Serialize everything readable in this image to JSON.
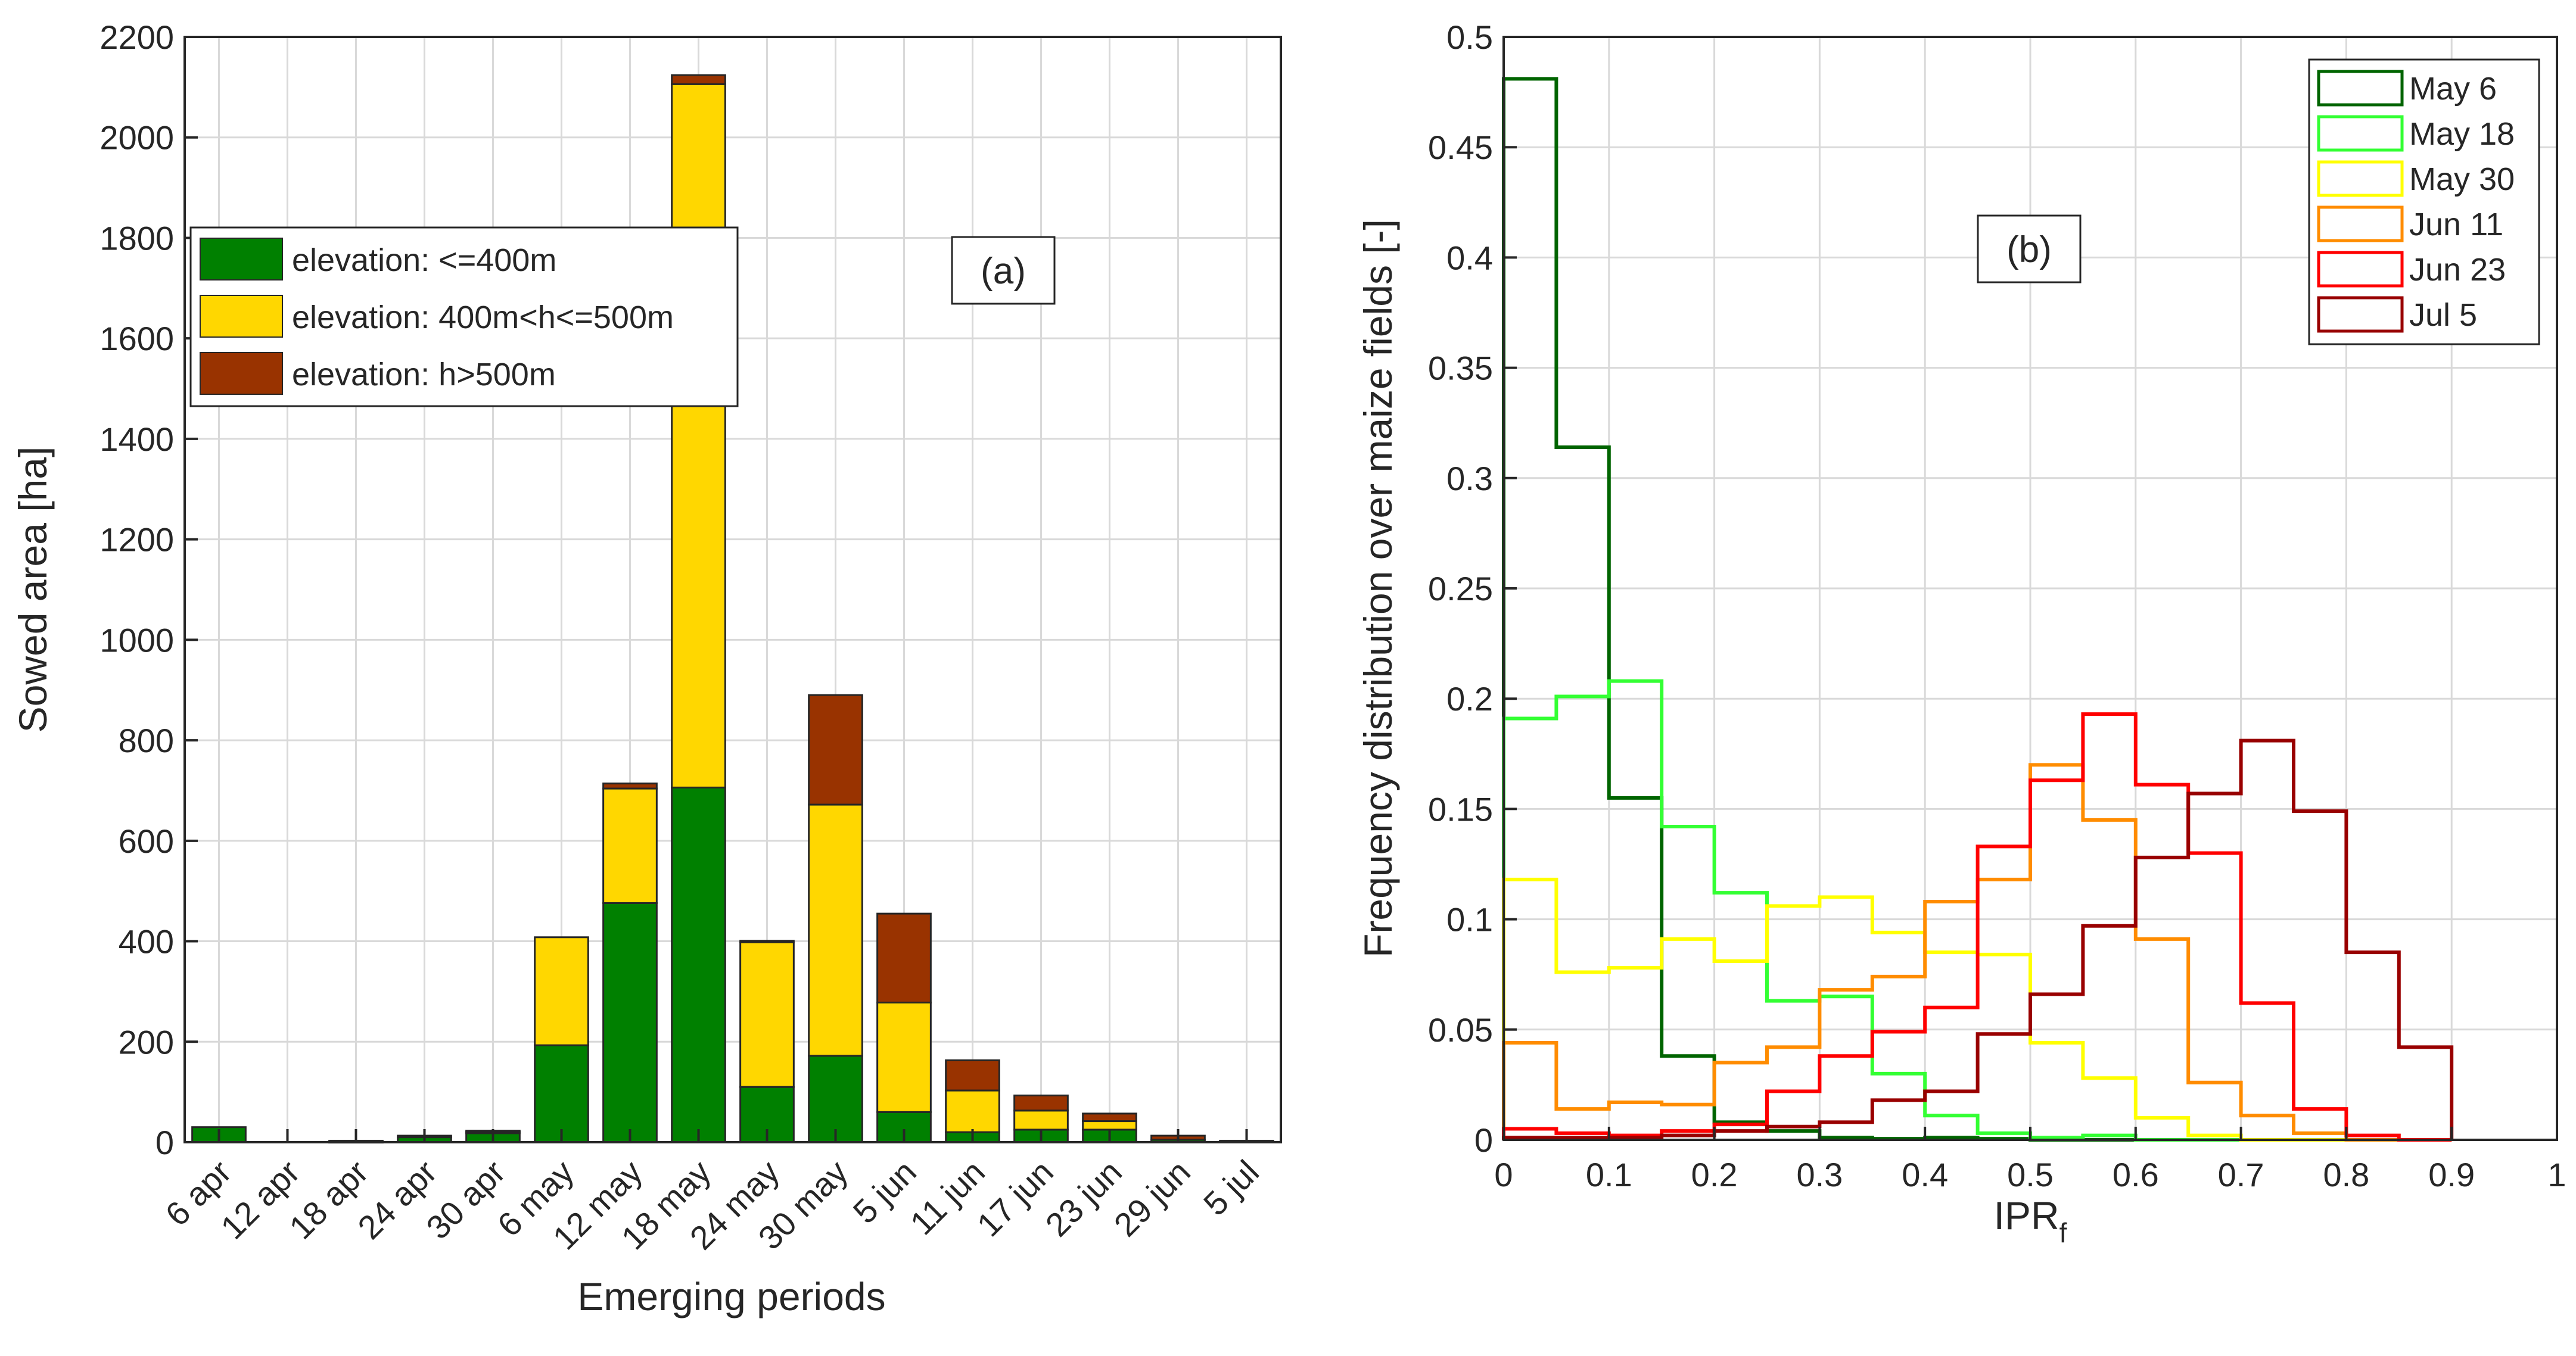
{
  "chart_data": [
    {
      "type": "bar",
      "stacked": true,
      "annotation": "(a)",
      "xlabel": "Emerging periods",
      "ylabel": "Sowed area [ha]",
      "ylim": [
        0,
        2200
      ],
      "yticks": [
        "0",
        "200",
        "400",
        "600",
        "800",
        "1000",
        "1200",
        "1400",
        "1600",
        "1800",
        "2000",
        "2200"
      ],
      "grid": true,
      "legend_position": "top-left",
      "categories": [
        "6 apr",
        "12 apr",
        "18 apr",
        "24 apr",
        "30 apr",
        "6 may",
        "12 may",
        "18 may",
        "24 may",
        "30 may",
        "5 jun",
        "11 jun",
        "17 jun",
        "23 jun",
        "29 jun",
        "5 jul"
      ],
      "series": [
        {
          "name": "elevation: <=400m",
          "color": "#008000",
          "values": [
            30,
            0,
            0,
            10,
            18,
            193,
            476,
            706,
            110,
            172,
            60,
            20,
            25,
            25,
            5,
            0
          ]
        },
        {
          "name": "elevation: 400m<h<=500m",
          "color": "#FFD700",
          "values": [
            0,
            0,
            1,
            3,
            3,
            215,
            228,
            1400,
            288,
            500,
            218,
            83,
            38,
            17,
            0,
            0
          ]
        },
        {
          "name": "elevation: h>500m",
          "color": "#993300",
          "values": [
            0,
            0,
            2,
            0,
            2,
            0,
            10,
            18,
            3,
            218,
            177,
            60,
            30,
            15,
            8,
            3
          ]
        }
      ]
    },
    {
      "type": "line",
      "step": true,
      "annotation": "(b)",
      "xlabel": "IPR",
      "xlabel_subscript": "f",
      "ylabel": "Frequency distribution over maize fields [-]",
      "xlim": [
        0,
        1
      ],
      "ylim": [
        0,
        0.5
      ],
      "xticks": [
        "0",
        "0.1",
        "0.2",
        "0.3",
        "0.4",
        "0.5",
        "0.6",
        "0.7",
        "0.8",
        "0.9",
        "1"
      ],
      "yticks": [
        "0",
        "0.05",
        "0.1",
        "0.15",
        "0.2",
        "0.25",
        "0.3",
        "0.35",
        "0.4",
        "0.45",
        "0.5"
      ],
      "grid": true,
      "legend_position": "top-right",
      "bin_edges": [
        0,
        0.05,
        0.1,
        0.15,
        0.2,
        0.25,
        0.3,
        0.35,
        0.4,
        0.45,
        0.5,
        0.55,
        0.6,
        0.65,
        0.7,
        0.75,
        0.8,
        0.85,
        0.9
      ],
      "series": [
        {
          "name": "May 6",
          "color": "#006400",
          "values": [
            0.481,
            0.314,
            0.155,
            0.038,
            0.008,
            0.004,
            0.001,
            0.0005,
            0.001,
            0.0005,
            0,
            0,
            0,
            0,
            0,
            0,
            0,
            0
          ]
        },
        {
          "name": "May 18",
          "color": "#33FF33",
          "values": [
            0.191,
            0.201,
            0.208,
            0.142,
            0.112,
            0.063,
            0.065,
            0.03,
            0.011,
            0.003,
            0.001,
            0.002,
            0,
            0,
            0,
            0,
            0,
            0
          ]
        },
        {
          "name": "May 30",
          "color": "#FFFF00",
          "values": [
            0.118,
            0.076,
            0.078,
            0.091,
            0.081,
            0.106,
            0.11,
            0.094,
            0.085,
            0.084,
            0.044,
            0.028,
            0.01,
            0.002,
            0,
            0,
            0,
            0
          ]
        },
        {
          "name": "Jun 11",
          "color": "#FF8C00",
          "values": [
            0.044,
            0.014,
            0.017,
            0.016,
            0.035,
            0.042,
            0.068,
            0.074,
            0.108,
            0.118,
            0.17,
            0.145,
            0.091,
            0.026,
            0.011,
            0.003,
            0,
            0
          ]
        },
        {
          "name": "Jun 23",
          "color": "#FF0000",
          "values": [
            0.005,
            0.003,
            0.002,
            0.004,
            0.007,
            0.022,
            0.038,
            0.049,
            0.06,
            0.133,
            0.163,
            0.193,
            0.161,
            0.13,
            0.062,
            0.014,
            0.002,
            0
          ]
        },
        {
          "name": "Jul 5",
          "color": "#990000",
          "values": [
            0.001,
            0.001,
            0.001,
            0.002,
            0.004,
            0.006,
            0.008,
            0.018,
            0.022,
            0.048,
            0.066,
            0.097,
            0.128,
            0.157,
            0.181,
            0.149,
            0.085,
            0.042
          ]
        }
      ]
    }
  ]
}
